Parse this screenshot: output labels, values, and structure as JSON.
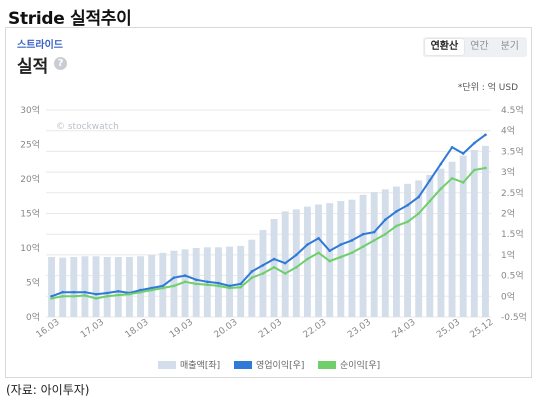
{
  "heading": "Stride 실적추이",
  "card": {
    "brand": "스트라이드",
    "title": "실적",
    "help_icon": "question-circle-icon",
    "tabs": [
      {
        "label": "연환산",
        "active": true
      },
      {
        "label": "연간",
        "active": false
      },
      {
        "label": "분기",
        "active": false
      }
    ],
    "unit": "*단위 : 억 USD",
    "watermark": "© stockwatch"
  },
  "source": "(자료: 아이투자)",
  "colors": {
    "bar": "#d3deea",
    "operating": "#2f7ad6",
    "net": "#6fcf6a",
    "grid": "#e8e8e8",
    "axis_text": "#888888"
  },
  "chart_data": {
    "type": "bar+line",
    "categories": [
      "16.03",
      "16.06",
      "16.09",
      "16.12",
      "17.03",
      "17.06",
      "17.09",
      "17.12",
      "18.03",
      "18.06",
      "18.09",
      "18.12",
      "19.03",
      "19.06",
      "19.09",
      "19.12",
      "20.03",
      "20.06",
      "20.09",
      "20.12",
      "21.03",
      "21.06",
      "21.09",
      "21.12",
      "22.03",
      "22.06",
      "22.09",
      "22.12",
      "23.03",
      "23.06",
      "23.09",
      "23.12",
      "24.03",
      "24.06",
      "24.09",
      "24.12",
      "25.03",
      "25.06",
      "25.09",
      "25.12"
    ],
    "x_tick_labels": [
      "16.03",
      "17.03",
      "18.03",
      "19.03",
      "20.03",
      "21.03",
      "22.03",
      "23.03",
      "24.03",
      "25.03",
      "25.12"
    ],
    "left_axis": {
      "min": 0,
      "max": 30,
      "step": 5,
      "tick_labels": [
        "0억",
        "5억",
        "10억",
        "15억",
        "20억",
        "25억",
        "30억"
      ]
    },
    "right_axis": {
      "min": -0.5,
      "max": 4.5,
      "step": 0.5,
      "tick_labels": [
        "-0.5억",
        "0억",
        "0.5억",
        "1억",
        "1.5억",
        "2억",
        "2.5억",
        "3억",
        "3.5억",
        "4억",
        "4.5억"
      ]
    },
    "grid": true,
    "legend_position": "bottom",
    "series": [
      {
        "name": "매출액[좌]",
        "axis": "left",
        "kind": "bar",
        "values": [
          8.7,
          8.6,
          8.7,
          8.8,
          8.8,
          8.7,
          8.7,
          8.7,
          8.8,
          9.0,
          9.3,
          9.6,
          9.8,
          10.0,
          10.1,
          10.1,
          10.2,
          10.3,
          11.2,
          12.6,
          14.2,
          15.3,
          15.6,
          16.0,
          16.3,
          16.5,
          16.8,
          17.0,
          17.7,
          18.1,
          18.5,
          18.9,
          19.3,
          19.8,
          20.6,
          21.5,
          22.5,
          23.4,
          24.2,
          24.8
        ]
      },
      {
        "name": "영업이익[우]",
        "axis": "right",
        "kind": "line",
        "values": [
          0.0,
          0.1,
          0.1,
          0.1,
          0.05,
          0.08,
          0.12,
          0.08,
          0.15,
          0.2,
          0.25,
          0.45,
          0.5,
          0.4,
          0.35,
          0.32,
          0.25,
          0.3,
          0.6,
          0.75,
          0.9,
          0.8,
          1.0,
          1.25,
          1.4,
          1.1,
          1.25,
          1.35,
          1.5,
          1.55,
          1.85,
          2.05,
          2.2,
          2.4,
          2.8,
          3.2,
          3.6,
          3.45,
          3.7,
          3.9
        ]
      },
      {
        "name": "순이익[우]",
        "axis": "right",
        "kind": "line",
        "values": [
          -0.05,
          0.0,
          0.0,
          0.02,
          -0.05,
          0.0,
          0.03,
          0.05,
          0.1,
          0.15,
          0.2,
          0.25,
          0.35,
          0.3,
          0.28,
          0.25,
          0.2,
          0.22,
          0.45,
          0.55,
          0.7,
          0.55,
          0.7,
          0.9,
          1.05,
          0.85,
          0.95,
          1.05,
          1.2,
          1.35,
          1.5,
          1.7,
          1.8,
          2.0,
          2.3,
          2.6,
          2.85,
          2.75,
          3.05,
          3.1
        ]
      }
    ]
  }
}
